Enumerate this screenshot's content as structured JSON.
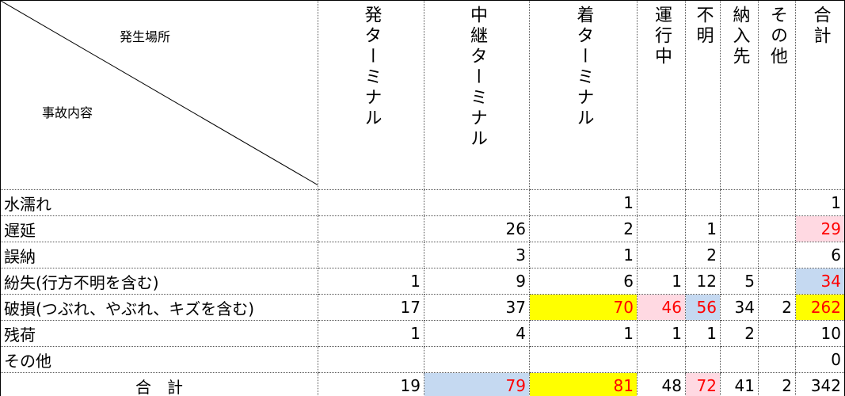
{
  "header": {
    "corner_top": "発生場所",
    "corner_bottom": "事故内容"
  },
  "table": {
    "columns": [
      "発ターミナル",
      "中継ターミナル",
      "着ターミナル",
      "運行中",
      "不明",
      "納入先",
      "その他",
      "合計"
    ],
    "rows": [
      {
        "label": "水濡れ",
        "cells": [
          null,
          null,
          1,
          null,
          null,
          null,
          null,
          1
        ]
      },
      {
        "label": "遅延",
        "cells": [
          null,
          26,
          2,
          null,
          1,
          null,
          null,
          29
        ]
      },
      {
        "label": "誤納",
        "cells": [
          null,
          3,
          1,
          null,
          2,
          null,
          null,
          6
        ]
      },
      {
        "label": "紛失(行方不明を含む)",
        "cells": [
          1,
          9,
          6,
          1,
          12,
          5,
          null,
          34
        ]
      },
      {
        "label": "破損(つぶれ、やぶれ、キズを含む)",
        "cells": [
          17,
          37,
          70,
          46,
          56,
          34,
          2,
          262
        ]
      },
      {
        "label": "残荷",
        "cells": [
          1,
          4,
          1,
          1,
          1,
          2,
          null,
          10
        ]
      },
      {
        "label": "その他",
        "cells": [
          null,
          null,
          null,
          null,
          null,
          null,
          null,
          0
        ]
      },
      {
        "label": "合　計",
        "cells": [
          19,
          79,
          81,
          48,
          72,
          41,
          2,
          342
        ]
      }
    ],
    "highlights": [
      {
        "row": 1,
        "col": 7,
        "color": "#ffd9e2"
      },
      {
        "row": 3,
        "col": 7,
        "color": "#c5d9f1"
      },
      {
        "row": 4,
        "col": 2,
        "color": "#ffff00"
      },
      {
        "row": 4,
        "col": 3,
        "color": "#ffd9e2"
      },
      {
        "row": 4,
        "col": 4,
        "color": "#c5d9f1"
      },
      {
        "row": 4,
        "col": 7,
        "color": "#ffff00"
      },
      {
        "row": 7,
        "col": 1,
        "color": "#c5d9f1"
      },
      {
        "row": 7,
        "col": 2,
        "color": "#ffff00"
      },
      {
        "row": 7,
        "col": 4,
        "color": "#ffd9e2"
      }
    ],
    "highlight_text_color": "#ff0000"
  }
}
